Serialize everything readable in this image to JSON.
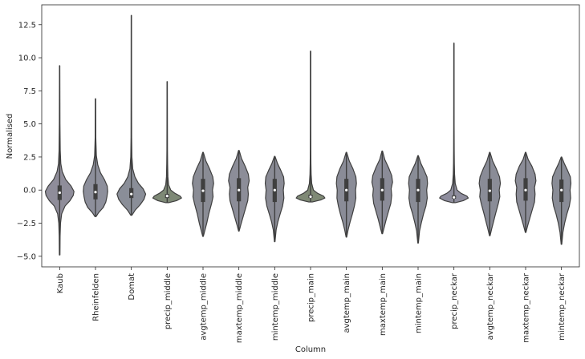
{
  "chart_data": {
    "type": "violin",
    "title": "",
    "xlabel": "Column",
    "ylabel": "Normalised",
    "ylim": [
      -5.8,
      14.0
    ],
    "yticks": [
      -5.0,
      -2.5,
      0.0,
      2.5,
      5.0,
      7.5,
      10.0,
      12.5
    ],
    "ytick_labels": [
      "−5.0",
      "−2.5",
      "0.0",
      "2.5",
      "5.0",
      "7.5",
      "10.0",
      "12.5"
    ],
    "grid": false,
    "legend": "none",
    "categories": [
      "Kaub",
      "Rheinfelden",
      "Domat",
      "precip_middle",
      "avgtemp_middle",
      "maxtemp_middle",
      "mintemp_middle",
      "precip_main",
      "avgtemp_main",
      "maxtemp_main",
      "mintemp_main",
      "precip_neckar",
      "avgtemp_neckar",
      "maxtemp_neckar",
      "mintemp_neckar"
    ],
    "colors": [
      "#8f8d9a",
      "#8d8f9b",
      "#8a8e98",
      "#7e8976",
      "#8a8c95",
      "#8c8d98",
      "#8a8b95",
      "#7f8975",
      "#8a8c97",
      "#8b8c98",
      "#898c96",
      "#8e8d9d",
      "#8a8c97",
      "#8b8c97",
      "#898c96"
    ],
    "series": [
      {
        "min": -4.9,
        "max": 9.4,
        "q1": -0.75,
        "median": -0.2,
        "q3": 0.35,
        "profile": [
          [
            -4.9,
            0.02
          ],
          [
            -3.5,
            0.03
          ],
          [
            -2.5,
            0.06
          ],
          [
            -1.8,
            0.14
          ],
          [
            -1.2,
            0.38
          ],
          [
            -0.8,
            0.72
          ],
          [
            -0.4,
            0.95
          ],
          [
            -0.1,
            1.0
          ],
          [
            0.3,
            0.8
          ],
          [
            0.8,
            0.42
          ],
          [
            1.4,
            0.18
          ],
          [
            2.0,
            0.08
          ],
          [
            3.0,
            0.04
          ],
          [
            5.0,
            0.02
          ],
          [
            9.4,
            0.01
          ]
        ]
      },
      {
        "min": -2.0,
        "max": 6.9,
        "q1": -0.7,
        "median": -0.15,
        "q3": 0.45,
        "profile": [
          [
            -2.0,
            0.04
          ],
          [
            -1.7,
            0.22
          ],
          [
            -1.3,
            0.55
          ],
          [
            -0.9,
            0.72
          ],
          [
            -0.5,
            0.8
          ],
          [
            -0.1,
            0.85
          ],
          [
            0.3,
            0.82
          ],
          [
            0.8,
            0.62
          ],
          [
            1.3,
            0.35
          ],
          [
            1.9,
            0.16
          ],
          [
            2.6,
            0.06
          ],
          [
            4.0,
            0.02
          ],
          [
            6.9,
            0.01
          ]
        ]
      },
      {
        "min": -1.9,
        "max": 13.2,
        "q1": -0.6,
        "median": -0.3,
        "q3": 0.15,
        "profile": [
          [
            -1.9,
            0.04
          ],
          [
            -1.5,
            0.28
          ],
          [
            -1.1,
            0.62
          ],
          [
            -0.7,
            0.88
          ],
          [
            -0.3,
            1.0
          ],
          [
            0.1,
            0.82
          ],
          [
            0.5,
            0.5
          ],
          [
            1.0,
            0.25
          ],
          [
            1.6,
            0.1
          ],
          [
            2.5,
            0.04
          ],
          [
            4.0,
            0.02
          ],
          [
            7.0,
            0.015
          ],
          [
            13.2,
            0.01
          ]
        ]
      },
      {
        "min": -0.95,
        "max": 8.2,
        "q1": -0.6,
        "median": -0.45,
        "q3": -0.3,
        "profile": [
          [
            -0.95,
            0.1
          ],
          [
            -0.8,
            0.65
          ],
          [
            -0.6,
            1.0
          ],
          [
            -0.45,
            0.9
          ],
          [
            -0.25,
            0.55
          ],
          [
            0.0,
            0.25
          ],
          [
            0.4,
            0.1
          ],
          [
            1.0,
            0.05
          ],
          [
            2.0,
            0.03
          ],
          [
            3.0,
            0.02
          ],
          [
            5.0,
            0.015
          ],
          [
            8.2,
            0.01
          ]
        ]
      },
      {
        "min": -3.5,
        "max": 2.85,
        "q1": -0.9,
        "median": -0.05,
        "q3": 0.85,
        "profile": [
          [
            -3.5,
            0.02
          ],
          [
            -3.0,
            0.14
          ],
          [
            -2.5,
            0.26
          ],
          [
            -1.8,
            0.4
          ],
          [
            -1.0,
            0.6
          ],
          [
            -0.5,
            0.7
          ],
          [
            0.0,
            0.66
          ],
          [
            0.5,
            0.74
          ],
          [
            1.0,
            0.68
          ],
          [
            1.6,
            0.46
          ],
          [
            2.2,
            0.2
          ],
          [
            2.85,
            0.02
          ]
        ]
      },
      {
        "min": -3.1,
        "max": 3.0,
        "q1": -0.85,
        "median": 0.0,
        "q3": 0.9,
        "profile": [
          [
            -3.1,
            0.02
          ],
          [
            -2.6,
            0.14
          ],
          [
            -2.0,
            0.3
          ],
          [
            -1.4,
            0.46
          ],
          [
            -0.8,
            0.62
          ],
          [
            -0.3,
            0.66
          ],
          [
            0.2,
            0.62
          ],
          [
            0.7,
            0.72
          ],
          [
            1.2,
            0.66
          ],
          [
            1.8,
            0.44
          ],
          [
            2.4,
            0.18
          ],
          [
            3.0,
            0.02
          ]
        ]
      },
      {
        "min": -3.9,
        "max": 2.55,
        "q1": -0.9,
        "median": 0.0,
        "q3": 0.85,
        "profile": [
          [
            -3.9,
            0.02
          ],
          [
            -3.0,
            0.1
          ],
          [
            -2.4,
            0.22
          ],
          [
            -1.8,
            0.38
          ],
          [
            -1.2,
            0.55
          ],
          [
            -0.6,
            0.64
          ],
          [
            0.0,
            0.6
          ],
          [
            0.5,
            0.66
          ],
          [
            1.0,
            0.62
          ],
          [
            1.5,
            0.42
          ],
          [
            2.0,
            0.2
          ],
          [
            2.55,
            0.02
          ]
        ]
      },
      {
        "min": -0.9,
        "max": 10.5,
        "q1": -0.6,
        "median": -0.5,
        "q3": -0.35,
        "profile": [
          [
            -0.9,
            0.12
          ],
          [
            -0.75,
            0.7
          ],
          [
            -0.6,
            1.0
          ],
          [
            -0.45,
            0.9
          ],
          [
            -0.25,
            0.5
          ],
          [
            0.0,
            0.2
          ],
          [
            0.5,
            0.08
          ],
          [
            1.2,
            0.04
          ],
          [
            2.0,
            0.025
          ],
          [
            3.0,
            0.018
          ],
          [
            5.0,
            0.012
          ],
          [
            10.5,
            0.01
          ]
        ]
      },
      {
        "min": -3.55,
        "max": 2.85,
        "q1": -0.85,
        "median": 0.0,
        "q3": 0.85,
        "profile": [
          [
            -3.55,
            0.02
          ],
          [
            -3.0,
            0.12
          ],
          [
            -2.4,
            0.26
          ],
          [
            -1.8,
            0.42
          ],
          [
            -1.2,
            0.56
          ],
          [
            -0.6,
            0.66
          ],
          [
            0.0,
            0.64
          ],
          [
            0.5,
            0.7
          ],
          [
            1.0,
            0.66
          ],
          [
            1.6,
            0.46
          ],
          [
            2.2,
            0.2
          ],
          [
            2.85,
            0.02
          ]
        ]
      },
      {
        "min": -3.3,
        "max": 2.95,
        "q1": -0.8,
        "median": 0.0,
        "q3": 0.9,
        "profile": [
          [
            -3.3,
            0.02
          ],
          [
            -2.8,
            0.14
          ],
          [
            -2.2,
            0.28
          ],
          [
            -1.6,
            0.44
          ],
          [
            -1.0,
            0.6
          ],
          [
            -0.4,
            0.66
          ],
          [
            0.1,
            0.62
          ],
          [
            0.6,
            0.72
          ],
          [
            1.1,
            0.66
          ],
          [
            1.7,
            0.44
          ],
          [
            2.3,
            0.18
          ],
          [
            2.95,
            0.02
          ]
        ]
      },
      {
        "min": -4.0,
        "max": 2.6,
        "q1": -0.9,
        "median": 0.0,
        "q3": 0.85,
        "profile": [
          [
            -4.0,
            0.02
          ],
          [
            -3.1,
            0.1
          ],
          [
            -2.5,
            0.22
          ],
          [
            -1.8,
            0.38
          ],
          [
            -1.2,
            0.55
          ],
          [
            -0.6,
            0.64
          ],
          [
            0.0,
            0.6
          ],
          [
            0.5,
            0.66
          ],
          [
            1.0,
            0.62
          ],
          [
            1.5,
            0.42
          ],
          [
            2.0,
            0.2
          ],
          [
            2.6,
            0.02
          ]
        ]
      },
      {
        "min": -0.95,
        "max": 11.1,
        "q1": -0.65,
        "median": -0.55,
        "q3": -0.4,
        "profile": [
          [
            -0.95,
            0.1
          ],
          [
            -0.8,
            0.65
          ],
          [
            -0.6,
            1.0
          ],
          [
            -0.45,
            0.9
          ],
          [
            -0.25,
            0.5
          ],
          [
            0.0,
            0.22
          ],
          [
            0.5,
            0.09
          ],
          [
            1.2,
            0.045
          ],
          [
            2.0,
            0.028
          ],
          [
            3.0,
            0.02
          ],
          [
            5.0,
            0.013
          ],
          [
            11.1,
            0.01
          ]
        ]
      },
      {
        "min": -3.45,
        "max": 2.85,
        "q1": -0.85,
        "median": -0.05,
        "q3": 0.85,
        "profile": [
          [
            -3.45,
            0.02
          ],
          [
            -2.9,
            0.14
          ],
          [
            -2.4,
            0.26
          ],
          [
            -1.8,
            0.4
          ],
          [
            -1.0,
            0.6
          ],
          [
            -0.5,
            0.7
          ],
          [
            0.0,
            0.66
          ],
          [
            0.5,
            0.74
          ],
          [
            1.0,
            0.68
          ],
          [
            1.6,
            0.46
          ],
          [
            2.2,
            0.2
          ],
          [
            2.85,
            0.02
          ]
        ]
      },
      {
        "min": -3.2,
        "max": 2.85,
        "q1": -0.8,
        "median": 0.0,
        "q3": 0.9,
        "profile": [
          [
            -3.2,
            0.02
          ],
          [
            -2.7,
            0.14
          ],
          [
            -2.1,
            0.3
          ],
          [
            -1.5,
            0.46
          ],
          [
            -0.9,
            0.62
          ],
          [
            -0.3,
            0.66
          ],
          [
            0.2,
            0.62
          ],
          [
            0.7,
            0.72
          ],
          [
            1.2,
            0.66
          ],
          [
            1.8,
            0.44
          ],
          [
            2.3,
            0.18
          ],
          [
            2.85,
            0.02
          ]
        ]
      },
      {
        "min": -4.1,
        "max": 2.5,
        "q1": -0.9,
        "median": 0.0,
        "q3": 0.8,
        "profile": [
          [
            -4.1,
            0.02
          ],
          [
            -3.2,
            0.1
          ],
          [
            -2.5,
            0.22
          ],
          [
            -1.8,
            0.38
          ],
          [
            -1.2,
            0.55
          ],
          [
            -0.6,
            0.64
          ],
          [
            0.0,
            0.6
          ],
          [
            0.5,
            0.66
          ],
          [
            1.0,
            0.62
          ],
          [
            1.5,
            0.42
          ],
          [
            2.0,
            0.2
          ],
          [
            2.5,
            0.02
          ]
        ]
      }
    ]
  }
}
